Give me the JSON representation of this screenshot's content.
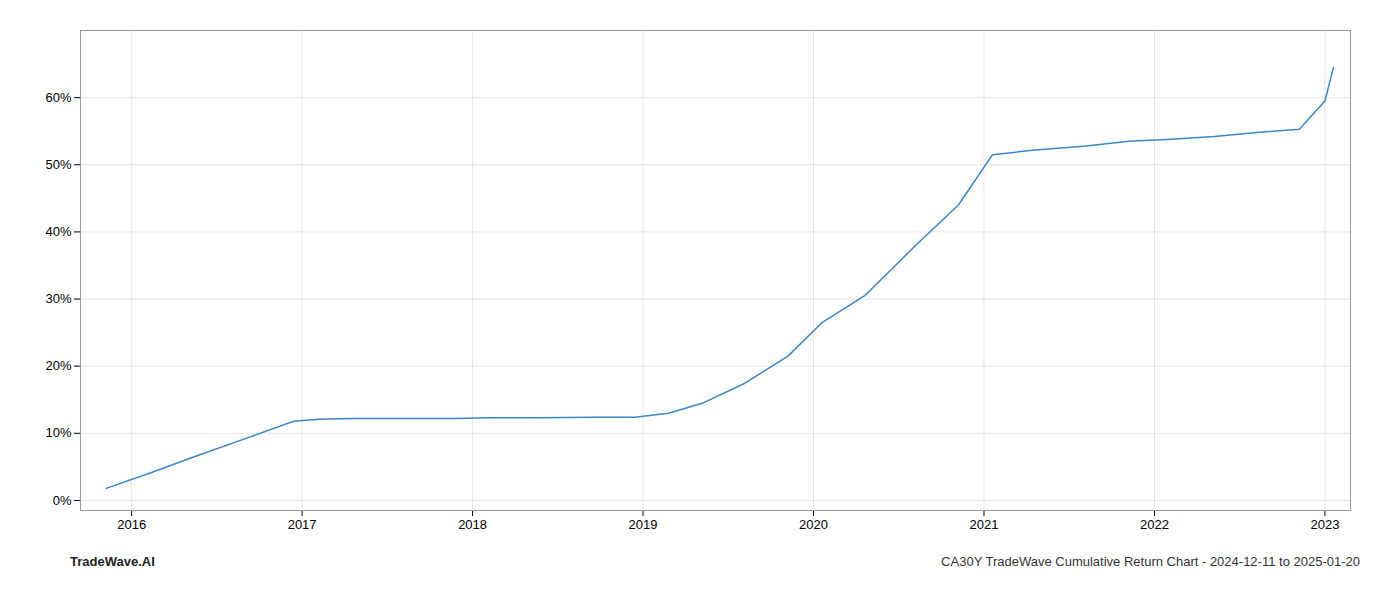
{
  "chart_data": {
    "type": "line",
    "x": [
      2015.85,
      2016.1,
      2016.4,
      2016.7,
      2016.95,
      2017.1,
      2017.3,
      2017.6,
      2017.9,
      2018.1,
      2018.4,
      2018.7,
      2018.95,
      2019.05,
      2019.15,
      2019.35,
      2019.6,
      2019.85,
      2020.05,
      2020.3,
      2020.6,
      2020.85,
      2021.05,
      2021.3,
      2021.6,
      2021.85,
      2022.1,
      2022.35,
      2022.6,
      2022.85,
      2023.0,
      2023.05
    ],
    "values": [
      0.018,
      0.04,
      0.068,
      0.095,
      0.118,
      0.121,
      0.122,
      0.122,
      0.122,
      0.123,
      0.123,
      0.124,
      0.124,
      0.127,
      0.13,
      0.145,
      0.175,
      0.215,
      0.265,
      0.305,
      0.38,
      0.44,
      0.515,
      0.522,
      0.528,
      0.535,
      0.538,
      0.542,
      0.548,
      0.553,
      0.595,
      0.645
    ],
    "color": "#3a87c8",
    "xlim": [
      2015.7,
      2023.15
    ],
    "xticks": [
      2016,
      2017,
      2018,
      2019,
      2020,
      2021,
      2022,
      2023
    ],
    "ylim": [
      -0.015,
      0.7
    ],
    "yticks": [
      {
        "value": 0.0,
        "label": "0%"
      },
      {
        "value": 0.1,
        "label": "10%"
      },
      {
        "value": 0.2,
        "label": "20%"
      },
      {
        "value": 0.3,
        "label": "30%"
      },
      {
        "value": 0.4,
        "label": "40%"
      },
      {
        "value": 0.5,
        "label": "50%"
      },
      {
        "value": 0.6,
        "label": "60%"
      }
    ],
    "grid": true,
    "annotations": [
      "TradeWave.AI",
      "CA30Y TradeWave Cumulative Return Chart - 2024-12-11 to 2025-01-20"
    ]
  }
}
